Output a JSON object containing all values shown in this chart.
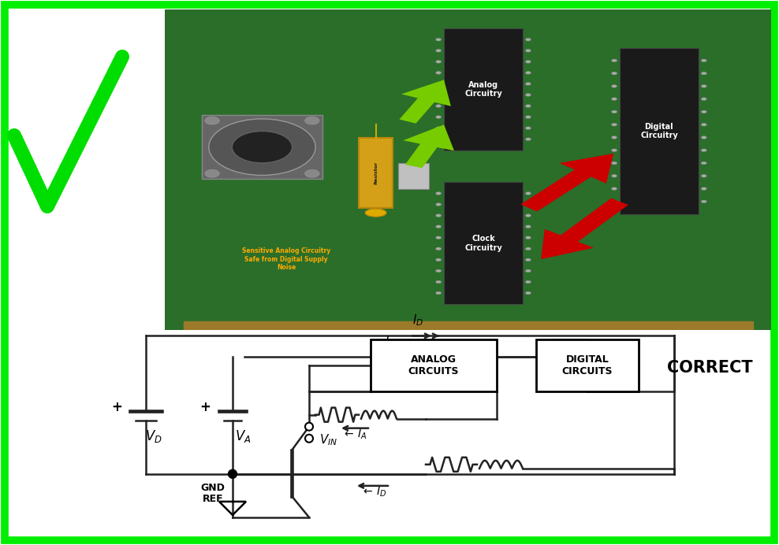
{
  "bg_color": "#ffffff",
  "border_color": "#00ee00",
  "pcb_color": "#2a6e2a",
  "checkmark_color": "#00dd00",
  "ic_color": "#1a1a1a",
  "ic_pin_color": "#999999",
  "resistor_color": "#d4a017",
  "annotation_color": "#ffaa00",
  "annotation_text": "Sensitive Analog Circuitry\nSafe from Digital Supply\nNoise",
  "analog_ic_label": "Analog\nCircuitry",
  "digital_ic_label": "Digital\nCircuitry",
  "clock_ic_label": "Clock\nCircuitry",
  "correct_label": "CORRECT",
  "green_arrow_color": "#77cc00",
  "red_arrow_color": "#cc0000",
  "circuit_line_color": "#222222"
}
